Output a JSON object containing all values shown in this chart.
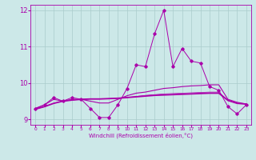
{
  "x": [
    0,
    1,
    2,
    3,
    4,
    5,
    6,
    7,
    8,
    9,
    10,
    11,
    12,
    13,
    14,
    15,
    16,
    17,
    18,
    19,
    20,
    21,
    22,
    23
  ],
  "line1": [
    9.3,
    9.4,
    9.6,
    9.5,
    9.6,
    9.55,
    9.3,
    9.05,
    9.05,
    9.4,
    9.85,
    10.5,
    10.45,
    11.35,
    12.0,
    10.45,
    10.95,
    10.6,
    10.55,
    9.9,
    9.8,
    9.35,
    9.15,
    9.4
  ],
  "line2": [
    9.3,
    9.4,
    9.55,
    9.5,
    9.55,
    9.55,
    9.5,
    9.45,
    9.45,
    9.55,
    9.65,
    9.72,
    9.75,
    9.8,
    9.85,
    9.87,
    9.9,
    9.92,
    9.93,
    9.95,
    9.95,
    9.55,
    9.47,
    9.42
  ],
  "line3": [
    9.28,
    9.35,
    9.44,
    9.5,
    9.53,
    9.55,
    9.56,
    9.56,
    9.57,
    9.58,
    9.6,
    9.62,
    9.64,
    9.66,
    9.67,
    9.68,
    9.69,
    9.7,
    9.71,
    9.72,
    9.72,
    9.52,
    9.44,
    9.42
  ],
  "line4": [
    9.28,
    9.35,
    9.44,
    9.5,
    9.53,
    9.55,
    9.56,
    9.56,
    9.57,
    9.58,
    9.6,
    9.63,
    9.66,
    9.68,
    9.7,
    9.71,
    9.72,
    9.73,
    9.74,
    9.75,
    9.75,
    9.52,
    9.44,
    9.42
  ],
  "bg_color": "#cce8e8",
  "grid_color": "#aacccc",
  "line_color": "#aa00aa",
  "xlabel": "Windchill (Refroidissement éolien,°C)",
  "ylim": [
    8.85,
    12.15
  ],
  "xlim": [
    -0.5,
    23.5
  ],
  "yticks": [
    9,
    10,
    11,
    12
  ],
  "xticks": [
    0,
    1,
    2,
    3,
    4,
    5,
    6,
    7,
    8,
    9,
    10,
    11,
    12,
    13,
    14,
    15,
    16,
    17,
    18,
    19,
    20,
    21,
    22,
    23
  ],
  "xtick_labels": [
    "0",
    "1",
    "2",
    "3",
    "4",
    "5",
    "6",
    "7",
    "8",
    "9",
    "10",
    "11",
    "12",
    "13",
    "14",
    "15",
    "16",
    "17",
    "18",
    "19",
    "20",
    "21",
    "22",
    "23"
  ]
}
